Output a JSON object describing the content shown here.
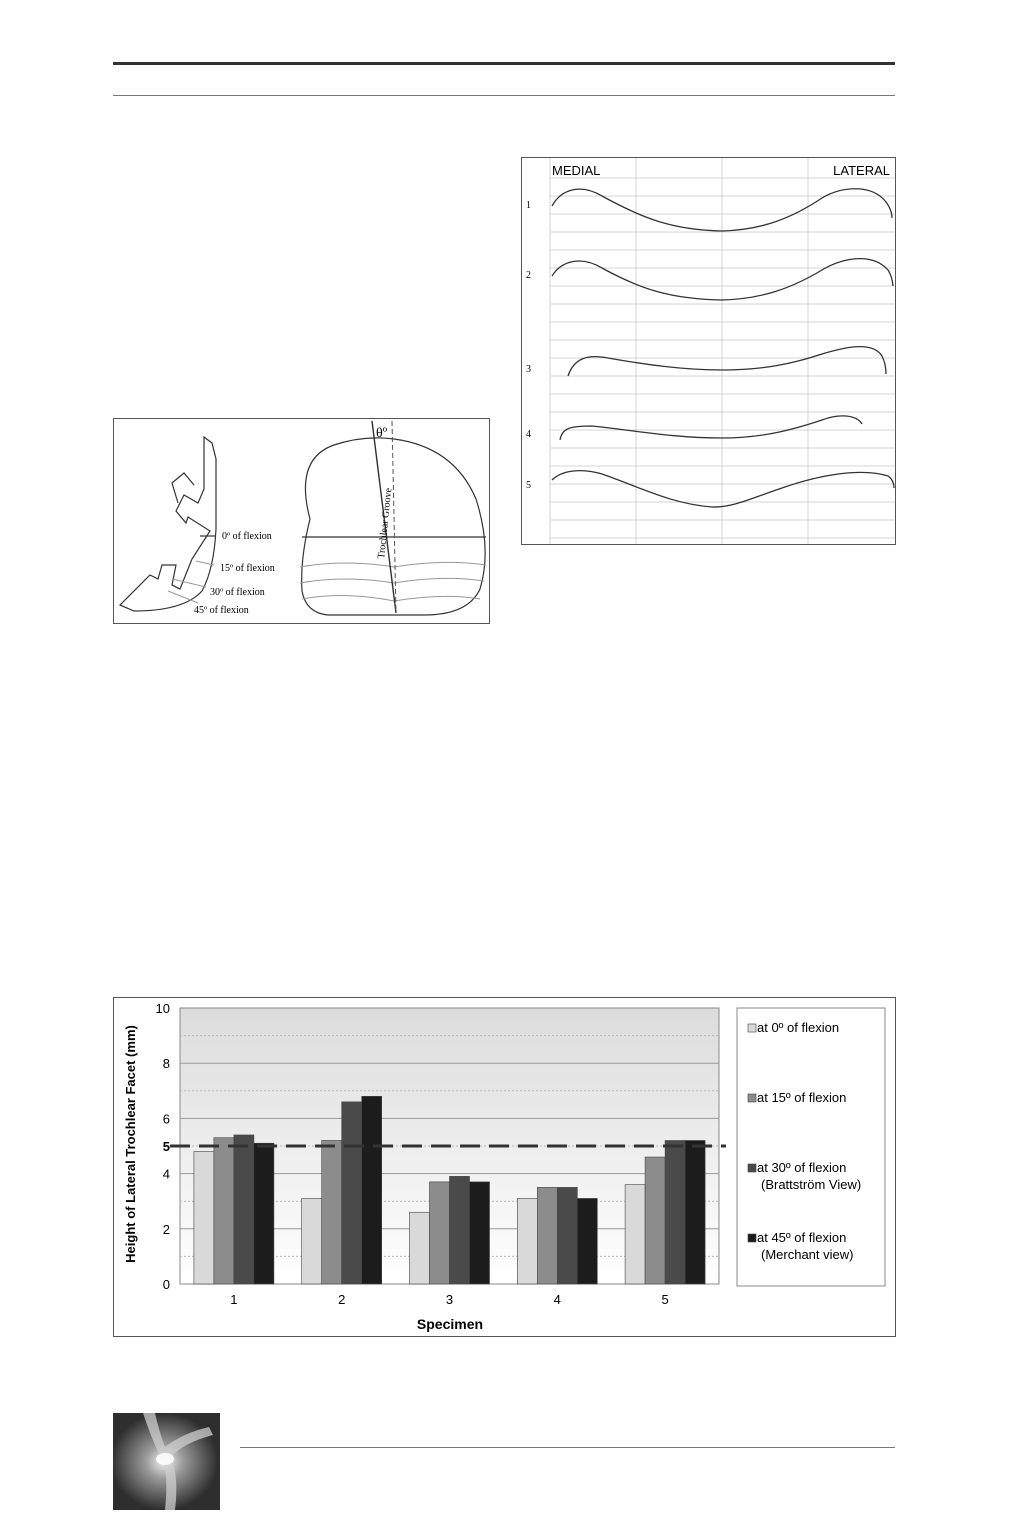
{
  "figure_a": {
    "flexion_labels": [
      "0º of flexion",
      "15º of flexion",
      "30º of flexion",
      "45º of flexion"
    ],
    "groove_label": "Trochlear Groove",
    "angle_label": "θº"
  },
  "figure_b": {
    "medial_label": "MEDIAL",
    "lateral_label": "LATERAL",
    "profile_numbers": [
      "1",
      "2",
      "3",
      "4",
      "5"
    ]
  },
  "chart_data": {
    "type": "bar",
    "title": "",
    "xlabel": "Specimen",
    "ylabel": "Height of Lateral Trochlear Facet (mm)",
    "ylim": [
      0,
      10
    ],
    "yticks": [
      "0",
      "2",
      "4",
      "5",
      "6",
      "8",
      "10"
    ],
    "categories": [
      "1",
      "2",
      "3",
      "4",
      "5"
    ],
    "reference_line": 5,
    "legend_position": "right",
    "series": [
      {
        "name": "at 0º of flexion",
        "values": [
          4.8,
          3.1,
          2.6,
          3.1,
          3.6
        ],
        "color": "#d9d9d9"
      },
      {
        "name": "at 15º of flexion",
        "values": [
          5.3,
          5.2,
          3.7,
          3.5,
          4.6
        ],
        "color": "#8c8c8c"
      },
      {
        "name": "at 30º of flexion\n(Brattström View)",
        "values": [
          5.4,
          6.6,
          3.9,
          3.5,
          5.2
        ],
        "color": "#4a4a4a"
      },
      {
        "name": "at 45º of flexion\n(Merchant view)",
        "values": [
          5.1,
          6.8,
          3.7,
          3.1,
          5.2
        ],
        "color": "#1c1c1c"
      }
    ]
  },
  "footer": {
    "thumbnail": "runner-knee-photo"
  }
}
